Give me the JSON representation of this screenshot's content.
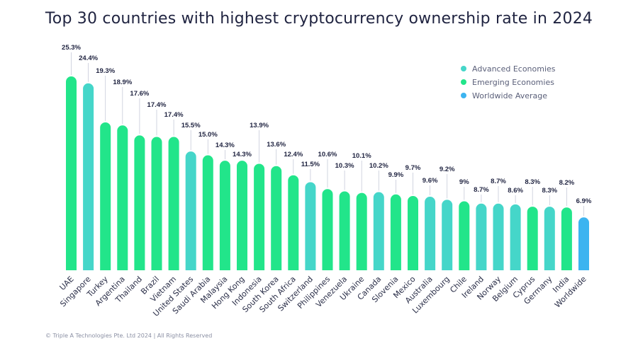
{
  "chart_data": {
    "type": "bar",
    "title": "Top 30 countries with highest cryptocurrency ownership rate in 2024",
    "xlabel": "",
    "ylabel": "",
    "grid": false,
    "legend_position": "top-right",
    "ylim": [
      0,
      26
    ],
    "categories": [
      "UAE",
      "Singapore",
      "Turkey",
      "Argentina",
      "Thailand",
      "Brazil",
      "Vietnam",
      "United States",
      "Saudi Arabia",
      "Malaysia",
      "Hong Kong",
      "Indonesia",
      "South Korea",
      "South Africa",
      "Switzerland",
      "Philippines",
      "Venezuela",
      "Ukraine",
      "Canada",
      "Slovenia",
      "Mexico",
      "Australia",
      "Luxembourg",
      "Chile",
      "Ireland",
      "Norway",
      "Belgium",
      "Cyprus",
      "Germany",
      "India",
      "Worldwide"
    ],
    "values": [
      25.3,
      24.4,
      19.3,
      18.9,
      17.6,
      17.4,
      17.4,
      15.5,
      15.0,
      14.3,
      14.3,
      13.9,
      13.6,
      12.4,
      11.5,
      10.6,
      10.3,
      10.1,
      10.2,
      9.9,
      9.7,
      9.6,
      9.2,
      9.0,
      8.7,
      8.7,
      8.6,
      8.3,
      8.3,
      8.2,
      6.9
    ],
    "value_labels": [
      "25.3%",
      "24.4%",
      "19.3%",
      "18.9%",
      "17.6%",
      "17.4%",
      "17.4%",
      "15.5%",
      "15.0%",
      "14.3%",
      "14.3%",
      "13.9%",
      "13.6%",
      "12.4%",
      "11.5%",
      "10.6%",
      "10.3%",
      "10.1%",
      "10.2%",
      "9.9%",
      "9.7%",
      "9.6%",
      "9.2%",
      "9%",
      "8.7%",
      "8.7%",
      "8.6%",
      "8.3%",
      "8.3%",
      "8.2%",
      "6.9%"
    ],
    "groups": [
      "Emerging Economies",
      "Advanced Economies",
      "Emerging Economies",
      "Emerging Economies",
      "Emerging Economies",
      "Emerging Economies",
      "Emerging Economies",
      "Advanced Economies",
      "Emerging Economies",
      "Emerging Economies",
      "Emerging Economies",
      "Emerging Economies",
      "Emerging Economies",
      "Emerging Economies",
      "Advanced Economies",
      "Emerging Economies",
      "Emerging Economies",
      "Emerging Economies",
      "Advanced Economies",
      "Emerging Economies",
      "Emerging Economies",
      "Advanced Economies",
      "Advanced Economies",
      "Emerging Economies",
      "Advanced Economies",
      "Advanced Economies",
      "Advanced Economies",
      "Emerging Economies",
      "Advanced Economies",
      "Emerging Economies",
      "Worldwide Average"
    ],
    "legend": [
      {
        "name": "Advanced Economies",
        "color": "#45d6c9"
      },
      {
        "name": "Emerging Economies",
        "color": "#22e58a"
      },
      {
        "name": "Worldwide Average",
        "color": "#3cb4f0"
      }
    ]
  },
  "footer": "© Triple A Technologies Pte. Ltd 2024 | All Rights Reserved"
}
